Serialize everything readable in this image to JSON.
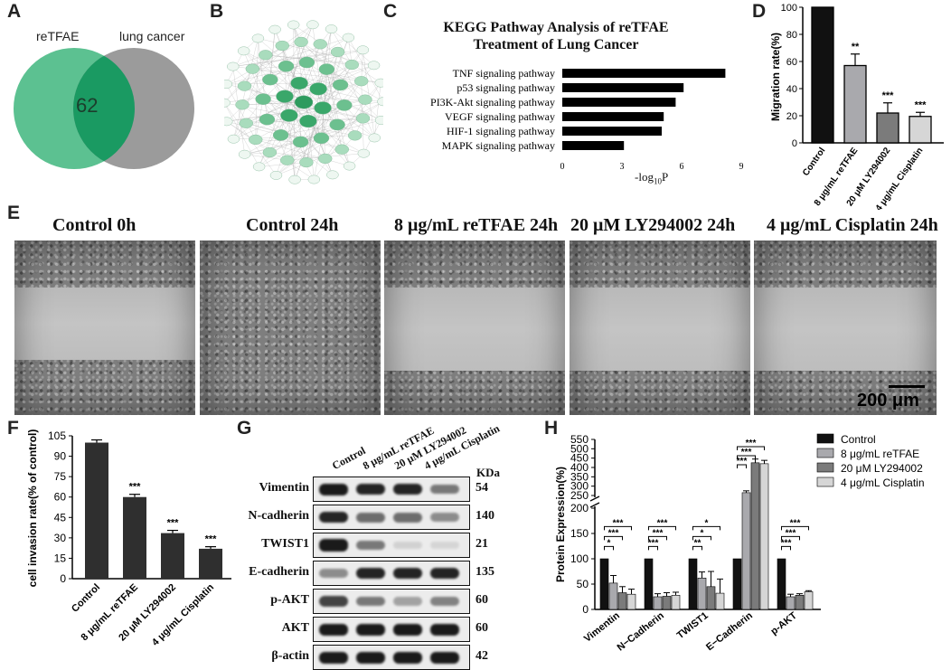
{
  "panel_labels": [
    "A",
    "B",
    "C",
    "D",
    "E",
    "F",
    "G",
    "H"
  ],
  "venn": {
    "left_label": "reTFAE",
    "right_label": "lung cancer",
    "overlap": "62",
    "colors": {
      "left": "#5cc191",
      "right": "#9b9b9b",
      "overlap": "#1a9a62"
    }
  },
  "network": {
    "description_color": "#2e9b5e"
  },
  "chart_c": {
    "type": "bar",
    "title_line1": "KEGG Pathway Analysis of reTFAE",
    "title_line2": "Treatment of Lung Cancer",
    "xlabel_main": "-log",
    "xlabel_sub": "10",
    "xlabel_suffix": "P",
    "categories": [
      "TNF signaling pathway",
      "p53 signaling pathway",
      "PI3K-Akt signaling pathway",
      "VEGF signaling pathway",
      "HIF-1 signaling pathway",
      "MAPK signaling pathway"
    ],
    "values": [
      8.2,
      6.1,
      5.7,
      5.1,
      5.0,
      3.1
    ],
    "xticks": [
      "0",
      "3",
      "6",
      "9"
    ],
    "xlim": [
      0,
      9
    ]
  },
  "chart_d": {
    "type": "bar",
    "ylabel": "Migration rate(%)",
    "ylim": [
      0,
      100
    ],
    "yticks": [
      "0",
      "20",
      "40",
      "60",
      "80",
      "100"
    ],
    "categories": [
      "Control",
      "8 μg/mL reTFAE",
      "20 μM LY294002",
      "4 μg/mL Cisplatin"
    ],
    "values": [
      100,
      57,
      22,
      19.5
    ],
    "errors": [
      0,
      8.5,
      7.5,
      3
    ],
    "significance": [
      "",
      "**",
      "***",
      "***"
    ],
    "colors": [
      "#111111",
      "#a9a9ad",
      "#7b7b7b",
      "#d6d6d6"
    ]
  },
  "panel_e": {
    "labels": [
      "Control  0h",
      "Control  24h",
      "8 μg/mL reTFAE  24h",
      "20 μM LY294002  24h",
      "4 μg/mL Cisplatin  24h"
    ],
    "scale_bar": "200 μm"
  },
  "chart_f": {
    "type": "bar",
    "ylabel": "cell invasion rate(% of control)",
    "ylim": [
      0,
      105
    ],
    "yticks": [
      "0",
      "15",
      "30",
      "45",
      "60",
      "75",
      "90",
      "105"
    ],
    "categories": [
      "Control",
      "8 μg/mL reTFAE",
      "20 μM LY294002",
      "4 μg/mL Cisplatin"
    ],
    "values": [
      100,
      60,
      33.5,
      22
    ],
    "errors": [
      2,
      2,
      2,
      1.5
    ],
    "significance": [
      "",
      "***",
      "***",
      "***"
    ]
  },
  "panel_g": {
    "lanes": [
      "Control",
      "8 μg/mL reTFAE",
      "20 μM LY294002",
      "4 μg/mL Cisplatin"
    ],
    "kda_header": "KDa",
    "rows": [
      {
        "label": "Vimentin",
        "kda": "54",
        "intensity": [
          1,
          0.95,
          0.95,
          0.55
        ]
      },
      {
        "label": "N-cadherin",
        "kda": "140",
        "intensity": [
          0.95,
          0.6,
          0.6,
          0.45
        ]
      },
      {
        "label": "TWIST1",
        "kda": "21",
        "intensity": [
          1.1,
          0.55,
          0.12,
          0.1
        ]
      },
      {
        "label": "E-cadherin",
        "kda": "135",
        "intensity": [
          0.45,
          0.95,
          0.95,
          0.95
        ]
      },
      {
        "label": "p-AKT",
        "kda": "60",
        "intensity": [
          0.8,
          0.55,
          0.35,
          0.5
        ]
      },
      {
        "label": "AKT",
        "kda": "60",
        "intensity": [
          1,
          1,
          1,
          1
        ]
      },
      {
        "label": "β-actin",
        "kda": "42",
        "intensity": [
          1,
          1,
          1,
          1
        ]
      }
    ]
  },
  "chart_h": {
    "type": "bar",
    "ylabel": "Protein Expression(%)",
    "yticks_low": [
      "0",
      "50",
      "100",
      "150",
      "200"
    ],
    "yticks_high": [
      "250",
      "300",
      "350",
      "400",
      "450",
      "500",
      "550"
    ],
    "categories": [
      "Vimentin",
      "N−Cadherin",
      "TWIST1",
      "E−Cadherin",
      "p-AKT"
    ],
    "series": [
      {
        "name": "Control",
        "values": [
          100,
          100,
          100,
          100,
          100
        ],
        "errors": [
          0,
          0,
          0,
          0,
          0
        ]
      },
      {
        "name": "8 μg/mL reTFAE",
        "values": [
          52,
          25,
          62,
          265,
          25
        ],
        "errors": [
          15,
          6,
          12,
          10,
          5
        ]
      },
      {
        "name": "20 μM LY294002",
        "values": [
          33,
          26,
          45,
          425,
          28
        ],
        "errors": [
          12,
          7,
          30,
          20,
          3
        ]
      },
      {
        "name": "4 μg/mL Cisplatin",
        "values": [
          30,
          28,
          32,
          420,
          35
        ],
        "errors": [
          10,
          6,
          28,
          18,
          2
        ]
      }
    ],
    "colors": [
      "#111111",
      "#a9a9ad",
      "#7b7b7b",
      "#d6d6d6"
    ],
    "brackets": [
      {
        "cat": 0,
        "labels": [
          "*",
          "***",
          "***"
        ]
      },
      {
        "cat": 1,
        "labels": [
          "***",
          "***",
          "***"
        ]
      },
      {
        "cat": 2,
        "labels": [
          "**",
          "*",
          "*"
        ]
      },
      {
        "cat": 3,
        "labels": [
          "***",
          "***",
          "***"
        ]
      },
      {
        "cat": 4,
        "labels": [
          "***",
          "***",
          "***"
        ]
      }
    ]
  }
}
